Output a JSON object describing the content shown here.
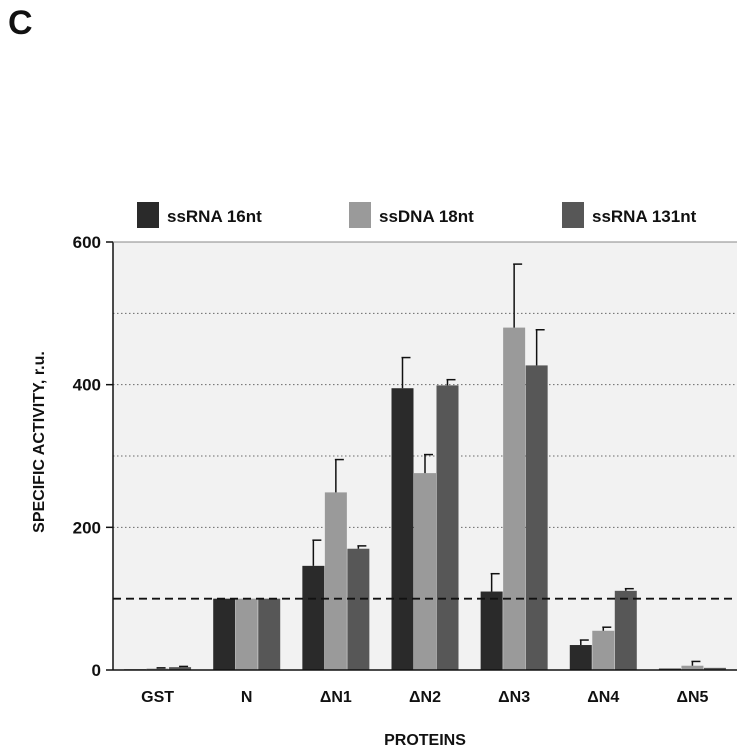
{
  "panel_letter": "C",
  "chart_data": {
    "type": "bar",
    "categories": [
      "GST",
      "N",
      "ΔN1",
      "ΔN2",
      "ΔN3",
      "ΔN4",
      "ΔN5"
    ],
    "series": [
      {
        "name": "ssRNA 16nt",
        "color": "#2a2a2a",
        "values": [
          1,
          100,
          146,
          395,
          110,
          35,
          2
        ],
        "errors": [
          0,
          0,
          36,
          43,
          25,
          7,
          0
        ]
      },
      {
        "name": "ssDNA 18nt",
        "color": "#9a9a9a",
        "values": [
          2,
          100,
          249,
          276,
          480,
          55,
          6
        ],
        "errors": [
          1,
          0,
          46,
          26,
          89,
          5,
          6
        ]
      },
      {
        "name": "ssRNA 131nt",
        "color": "#575757",
        "values": [
          4,
          100,
          170,
          399,
          427,
          111,
          3
        ],
        "errors": [
          1,
          0,
          4,
          8,
          50,
          3,
          0
        ]
      }
    ],
    "xlabel": "PROTEINS",
    "ylabel": "SPECIFIC ACTIVITY, r.u.",
    "ylim": [
      0,
      600
    ],
    "yticks": [
      "0",
      "200",
      "400",
      "600"
    ],
    "gridlines": [
      200,
      300,
      400,
      500
    ],
    "reference_line": 100,
    "legend_position": "top",
    "background": "#f2f2f2"
  }
}
